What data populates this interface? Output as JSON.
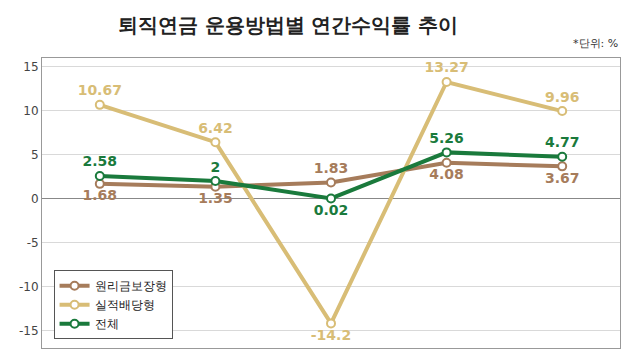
{
  "chart_data": {
    "type": "line",
    "title": "퇴직연금 운용방법별 연간수익률 추이",
    "annotations": [
      "*단위: %"
    ],
    "categories": [
      null,
      null,
      null,
      null,
      null
    ],
    "series": [
      {
        "name": "원리금보장형",
        "color": "#a67c5b",
        "values": [
          1.68,
          1.35,
          1.83,
          4.08,
          3.67
        ]
      },
      {
        "name": "실적배당형",
        "color": "#d8bd76",
        "values": [
          10.67,
          6.42,
          -14.2,
          13.27,
          9.96
        ]
      },
      {
        "name": "전체",
        "color": "#1a7a3c",
        "values": [
          2.58,
          2,
          0.02,
          5.26,
          4.77
        ]
      }
    ],
    "ylim": [
      -17,
      16
    ],
    "yticks": [
      -15,
      -10,
      -5,
      0,
      5,
      10,
      15
    ],
    "grid": true,
    "legend": "lower left",
    "data_labels": true,
    "tick_labels": "y",
    "marker": "circle"
  }
}
